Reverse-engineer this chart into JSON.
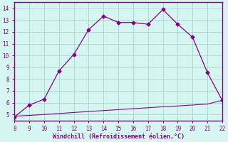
{
  "x_line1": [
    8,
    9,
    10,
    11,
    12,
    13,
    14,
    15,
    16,
    17,
    18,
    19,
    20,
    21,
    22
  ],
  "y_line1": [
    4.8,
    5.8,
    6.3,
    8.7,
    10.1,
    12.2,
    13.35,
    12.8,
    12.8,
    12.65,
    13.9,
    12.65,
    11.55,
    8.55,
    6.2
  ],
  "x_line2": [
    8,
    9,
    10,
    11,
    12,
    13,
    14,
    15,
    16,
    17,
    18,
    19,
    20,
    21,
    22
  ],
  "y_line2": [
    4.85,
    4.92,
    5.0,
    5.08,
    5.17,
    5.25,
    5.33,
    5.41,
    5.49,
    5.57,
    5.65,
    5.72,
    5.8,
    5.88,
    6.2
  ],
  "line_color": "#880088",
  "background_color": "#d5f5f0",
  "grid_color": "#aad8d0",
  "xlabel": "Windchill (Refroidissement éolien,°C)",
  "xlim": [
    8,
    22
  ],
  "ylim": [
    4.5,
    14.5
  ],
  "xticks": [
    8,
    9,
    10,
    11,
    12,
    13,
    14,
    15,
    16,
    17,
    18,
    19,
    20,
    21,
    22
  ],
  "yticks": [
    5,
    6,
    7,
    8,
    9,
    10,
    11,
    12,
    13,
    14
  ],
  "xlabel_color": "#880088",
  "tick_color": "#880088",
  "border_color": "#880088",
  "marker": "D",
  "markersize": 2.5
}
